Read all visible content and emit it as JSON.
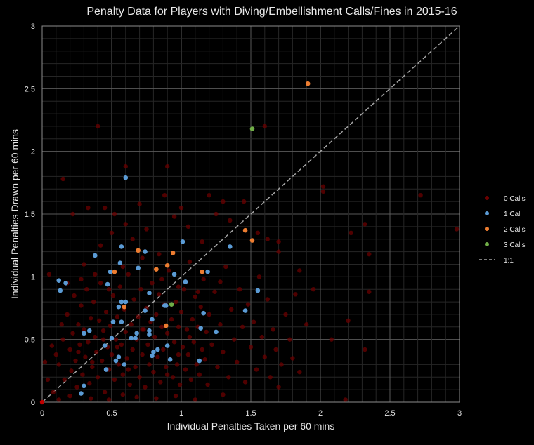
{
  "chart_data": {
    "type": "scatter",
    "title": "Penalty Data for Players with Diving/Embellishment Calls/Fines in 2015-16",
    "xlabel": "Individual Penalties Taken per 60 mins",
    "ylabel": "Individual Penalties Drawn per 60 mins",
    "xlim": [
      0,
      3
    ],
    "ylim": [
      0,
      3
    ],
    "x_ticks": [
      "0",
      "0.5",
      "1",
      "1.5",
      "2",
      "2.5",
      "3"
    ],
    "y_ticks": [
      "0",
      "0.5",
      "1",
      "1.5",
      "2",
      "2.5",
      "3"
    ],
    "grid": true,
    "legend_position": "right",
    "series": [
      {
        "name": "0 Calls",
        "color": "#6b0000",
        "points": [
          [
            0.05,
            1.02
          ],
          [
            0.07,
            0.45
          ],
          [
            0.1,
            0.38
          ],
          [
            0.12,
            0.3
          ],
          [
            0.14,
            0.62
          ],
          [
            0.15,
            0.5
          ],
          [
            0.16,
            0.18
          ],
          [
            0.18,
            0.7
          ],
          [
            0.2,
            0.42
          ],
          [
            0.21,
            0.25
          ],
          [
            0.22,
            0.55
          ],
          [
            0.23,
            0.85
          ],
          [
            0.24,
            0.33
          ],
          [
            0.25,
            0.12
          ],
          [
            0.26,
            0.62
          ],
          [
            0.27,
            0.46
          ],
          [
            0.28,
            0.77
          ],
          [
            0.29,
            0.22
          ],
          [
            0.3,
            0.58
          ],
          [
            0.31,
            0.36
          ],
          [
            0.32,
            0.9
          ],
          [
            0.33,
            0.48
          ],
          [
            0.34,
            0.15
          ],
          [
            0.35,
            0.67
          ],
          [
            0.36,
            0.28
          ],
          [
            0.37,
            0.8
          ],
          [
            0.38,
            0.52
          ],
          [
            0.39,
            0.4
          ],
          [
            0.4,
            0.2
          ],
          [
            0.41,
            0.65
          ],
          [
            0.42,
            0.95
          ],
          [
            0.43,
            0.33
          ],
          [
            0.44,
            0.57
          ],
          [
            0.45,
            0.08
          ],
          [
            0.46,
            0.72
          ],
          [
            0.47,
            0.44
          ],
          [
            0.48,
            0.26
          ],
          [
            0.49,
            0.61
          ],
          [
            0.5,
            0.38
          ],
          [
            0.51,
            0.85
          ],
          [
            0.52,
            0.18
          ],
          [
            0.53,
            0.5
          ],
          [
            0.54,
            0.68
          ],
          [
            0.55,
            0.3
          ],
          [
            0.56,
            0.92
          ],
          [
            0.57,
            0.46
          ],
          [
            0.58,
            0.22
          ],
          [
            0.59,
            0.74
          ],
          [
            0.6,
            0.56
          ],
          [
            0.61,
            0.35
          ],
          [
            0.62,
            1.02
          ],
          [
            0.63,
            0.14
          ],
          [
            0.64,
            0.62
          ],
          [
            0.65,
            0.42
          ],
          [
            0.66,
            0.82
          ],
          [
            0.67,
            0.28
          ],
          [
            0.68,
            0.5
          ],
          [
            0.69,
            0.68
          ],
          [
            0.7,
            0.2
          ],
          [
            0.71,
            0.9
          ],
          [
            0.72,
            0.38
          ],
          [
            0.73,
            0.58
          ],
          [
            0.74,
            0.12
          ],
          [
            0.75,
            0.75
          ],
          [
            0.76,
            0.46
          ],
          [
            0.77,
            0.3
          ],
          [
            0.78,
            0.64
          ],
          [
            0.79,
            0.95
          ],
          [
            0.8,
            0.24
          ],
          [
            0.81,
            0.52
          ],
          [
            0.82,
            0.7
          ],
          [
            0.83,
            0.36
          ],
          [
            0.84,
            0.86
          ],
          [
            0.85,
            0.16
          ],
          [
            0.86,
            0.6
          ],
          [
            0.87,
            0.42
          ],
          [
            0.88,
            0.78
          ],
          [
            0.89,
            0.28
          ],
          [
            0.9,
            0.55
          ],
          [
            0.91,
            1.05
          ],
          [
            0.92,
            0.34
          ],
          [
            0.93,
            0.66
          ],
          [
            0.94,
            0.2
          ],
          [
            0.95,
            0.48
          ],
          [
            0.96,
            0.8
          ],
          [
            0.97,
            0.3
          ],
          [
            0.98,
            0.6
          ],
          [
            0.99,
            0.14
          ],
          [
            1.0,
            0.72
          ],
          [
            1.01,
            0.44
          ],
          [
            1.02,
            0.9
          ],
          [
            1.03,
            0.26
          ],
          [
            1.04,
            0.58
          ],
          [
            1.05,
            0.38
          ],
          [
            1.06,
            1.12
          ],
          [
            1.07,
            0.18
          ],
          [
            1.08,
            0.66
          ],
          [
            1.09,
            0.48
          ],
          [
            1.1,
            0.84
          ],
          [
            1.11,
            0.3
          ],
          [
            1.12,
            0.6
          ],
          [
            1.13,
            0.22
          ],
          [
            1.14,
            0.76
          ],
          [
            1.15,
            0.42
          ],
          [
            1.16,
            0.98
          ],
          [
            1.17,
            0.34
          ],
          [
            1.18,
            0.56
          ],
          [
            1.19,
            0.14
          ],
          [
            1.2,
            0.7
          ],
          [
            1.22,
            0.46
          ],
          [
            1.24,
            0.88
          ],
          [
            1.26,
            0.28
          ],
          [
            1.28,
            0.62
          ],
          [
            1.3,
            0.4
          ],
          [
            1.32,
            1.08
          ],
          [
            1.34,
            0.2
          ],
          [
            1.36,
            0.74
          ],
          [
            1.38,
            0.5
          ],
          [
            1.4,
            0.32
          ],
          [
            1.42,
            0.9
          ],
          [
            1.44,
            0.6
          ],
          [
            1.46,
            0.16
          ],
          [
            1.48,
            0.78
          ],
          [
            1.5,
            0.44
          ],
          [
            1.52,
            0.64
          ],
          [
            1.54,
            0.26
          ],
          [
            1.56,
            1.0
          ],
          [
            1.58,
            0.52
          ],
          [
            1.6,
            0.36
          ],
          [
            1.62,
            0.82
          ],
          [
            1.64,
            0.2
          ],
          [
            1.66,
            0.58
          ],
          [
            1.68,
            0.42
          ],
          [
            1.7,
            1.2
          ],
          [
            1.72,
            0.3
          ],
          [
            1.75,
            0.7
          ],
          [
            1.78,
            0.5
          ],
          [
            1.82,
            0.86
          ],
          [
            1.85,
            0.24
          ],
          [
            1.9,
            0.62
          ],
          [
            0.3,
            1.1
          ],
          [
            0.42,
            1.25
          ],
          [
            0.5,
            1.35
          ],
          [
            0.6,
            1.42
          ],
          [
            0.65,
            1.3
          ],
          [
            0.75,
            1.38
          ],
          [
            0.84,
            1.18
          ],
          [
            0.95,
            1.48
          ],
          [
            1.05,
            1.4
          ],
          [
            1.15,
            1.28
          ],
          [
            1.25,
            1.5
          ],
          [
            1.35,
            1.45
          ],
          [
            1.45,
            1.6
          ],
          [
            1.55,
            1.35
          ],
          [
            1.62,
            1.3
          ],
          [
            1.7,
            1.28
          ],
          [
            0.52,
            1.5
          ],
          [
            0.7,
            1.58
          ],
          [
            0.88,
            1.65
          ],
          [
            1.0,
            1.55
          ],
          [
            0.15,
            1.78
          ],
          [
            0.22,
            1.5
          ],
          [
            0.4,
            2.2
          ],
          [
            0.9,
            1.88
          ],
          [
            1.2,
            1.65
          ],
          [
            1.3,
            1.6
          ],
          [
            0.6,
            1.88
          ],
          [
            0.45,
            1.55
          ],
          [
            0.33,
            1.55
          ],
          [
            2.02,
            1.72
          ],
          [
            2.02,
            1.68
          ],
          [
            2.22,
            1.35
          ],
          [
            2.32,
            1.42
          ],
          [
            2.35,
            1.18
          ],
          [
            2.72,
            1.65
          ],
          [
            2.98,
            1.38
          ],
          [
            2.32,
            0.42
          ],
          [
            2.35,
            0.88
          ],
          [
            2.2,
            0.65
          ],
          [
            2.18,
            0.02
          ],
          [
            1.8,
            0.35
          ],
          [
            1.7,
            0.12
          ],
          [
            1.6,
            2.2
          ],
          [
            1.95,
            0.9
          ],
          [
            2.08,
            0.5
          ],
          [
            1.85,
            1.05
          ],
          [
            0.02,
            0.32
          ],
          [
            0.04,
            0.18
          ],
          [
            0.08,
            0.08
          ],
          [
            0.12,
            0.02
          ],
          [
            0.2,
            0.05
          ],
          [
            0.35,
            0.03
          ],
          [
            0.48,
            0.02
          ],
          [
            0.58,
            0.06
          ],
          [
            0.68,
            0.04
          ],
          [
            0.82,
            0.03
          ],
          [
            0.96,
            0.05
          ],
          [
            1.1,
            0.02
          ],
          [
            1.3,
            0.06
          ],
          [
            0.18,
            0.95
          ],
          [
            0.28,
            0.98
          ],
          [
            0.38,
            1.02
          ],
          [
            0.48,
            0.9
          ],
          [
            0.58,
            1.08
          ],
          [
            0.72,
            1.15
          ],
          [
            0.86,
            0.98
          ],
          [
            0.98,
            0.92
          ],
          [
            1.12,
            0.88
          ],
          [
            1.28,
            0.96
          ],
          [
            0.26,
            0.4
          ],
          [
            0.36,
            0.32
          ],
          [
            0.44,
            0.5
          ],
          [
            0.54,
            0.44
          ],
          [
            0.62,
            0.26
          ],
          [
            0.72,
            0.58
          ],
          [
            0.8,
            0.4
          ],
          [
            0.9,
            0.22
          ],
          [
            0.98,
            0.38
          ],
          [
            1.06,
            0.52
          ]
        ]
      },
      {
        "name": "1 Call",
        "color": "#5b9bd5",
        "points": [
          [
            0.6,
            1.79
          ],
          [
            0.38,
            1.17
          ],
          [
            0.57,
            1.24
          ],
          [
            0.74,
            1.2
          ],
          [
            1.01,
            1.28
          ],
          [
            1.35,
            1.24
          ],
          [
            0.56,
            1.11
          ],
          [
            0.49,
            1.04
          ],
          [
            0.69,
            1.07
          ],
          [
            0.95,
            1.02
          ],
          [
            1.03,
            0.96
          ],
          [
            1.19,
            1.04
          ],
          [
            0.12,
            0.97
          ],
          [
            0.17,
            0.95
          ],
          [
            0.13,
            0.89
          ],
          [
            0.47,
            0.94
          ],
          [
            1.55,
            0.89
          ],
          [
            0.77,
            0.87
          ],
          [
            0.57,
            0.8
          ],
          [
            0.6,
            0.8
          ],
          [
            0.55,
            0.76
          ],
          [
            0.88,
            0.77
          ],
          [
            0.89,
            0.77
          ],
          [
            0.74,
            0.73
          ],
          [
            1.16,
            0.71
          ],
          [
            1.46,
            0.73
          ],
          [
            0.51,
            0.64
          ],
          [
            0.57,
            0.64
          ],
          [
            0.79,
            0.66
          ],
          [
            0.34,
            0.57
          ],
          [
            0.3,
            0.55
          ],
          [
            0.68,
            0.55
          ],
          [
            0.77,
            0.57
          ],
          [
            0.77,
            0.54
          ],
          [
            1.14,
            0.59
          ],
          [
            1.25,
            0.56
          ],
          [
            0.5,
            0.51
          ],
          [
            0.64,
            0.51
          ],
          [
            0.67,
            0.51
          ],
          [
            0.45,
            0.45
          ],
          [
            0.9,
            0.45
          ],
          [
            0.83,
            0.42
          ],
          [
            0.8,
            0.4
          ],
          [
            0.79,
            0.37
          ],
          [
            0.53,
            0.33
          ],
          [
            0.55,
            0.36
          ],
          [
            0.59,
            0.3
          ],
          [
            0.92,
            0.34
          ],
          [
            1.13,
            0.33
          ],
          [
            0.46,
            0.26
          ],
          [
            0.3,
            0.13
          ],
          [
            0.28,
            0.07
          ]
        ]
      },
      {
        "name": "2 Calls",
        "color": "#ed7d31",
        "points": [
          [
            1.91,
            2.54
          ],
          [
            1.46,
            1.37
          ],
          [
            1.51,
            1.29
          ],
          [
            0.69,
            1.21
          ],
          [
            0.94,
            1.19
          ],
          [
            0.9,
            1.09
          ],
          [
            0.82,
            1.06
          ],
          [
            1.15,
            1.04
          ],
          [
            0.52,
            1.04
          ],
          [
            0.59,
            0.76
          ],
          [
            0.89,
            0.61
          ]
        ]
      },
      {
        "name": "3 Calls",
        "color": "#70ad47",
        "points": [
          [
            1.51,
            2.18
          ],
          [
            0.93,
            0.78
          ]
        ]
      }
    ],
    "reference_line": {
      "name": "1:1",
      "color": "#a6a6a6",
      "from": [
        0,
        0
      ],
      "to": [
        3,
        3
      ]
    },
    "origin_point": {
      "color": "#c00000",
      "x": 0,
      "y": 0
    }
  }
}
